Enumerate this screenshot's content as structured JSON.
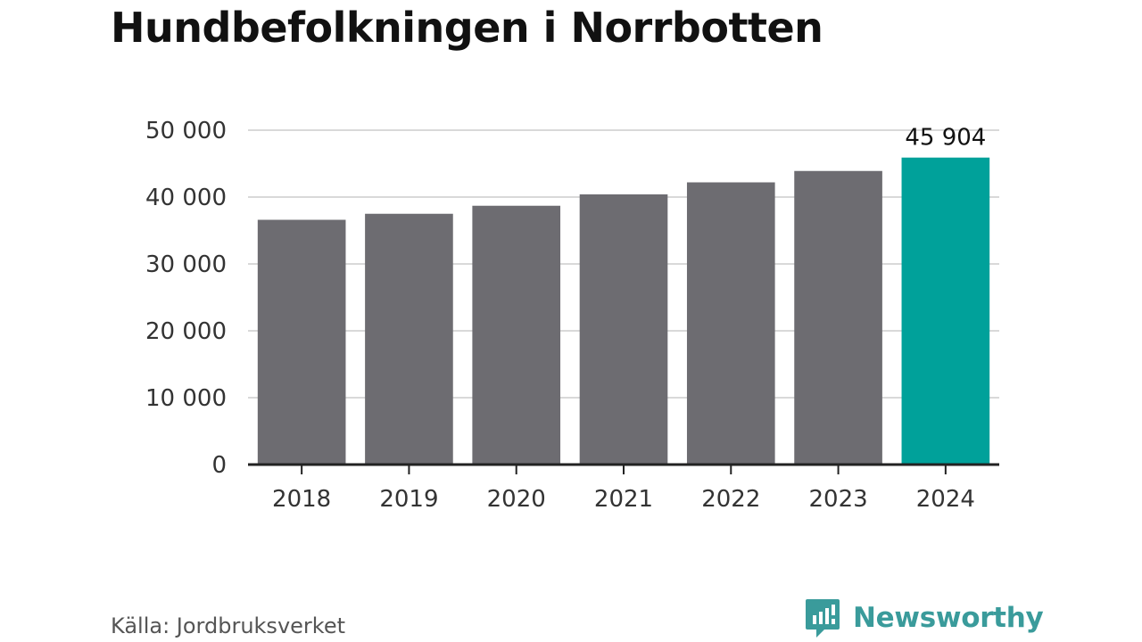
{
  "title": "Hundbefolkningen i Norrbotten",
  "source": "Källa: Jordbruksverket",
  "brand": {
    "name": "Newsworthy",
    "icon": "bar-chart-speech-bubble-icon"
  },
  "colors": {
    "bar": "#6d6c71",
    "highlight": "#00a19a",
    "grid": "#d9d9d9",
    "axis": "#222222",
    "text": "#333333",
    "brand": "#3a9b9b"
  },
  "chart_data": {
    "type": "bar",
    "title": "Hundbefolkningen i Norrbotten",
    "categories": [
      "2018",
      "2019",
      "2020",
      "2021",
      "2022",
      "2023",
      "2024"
    ],
    "values": [
      36600,
      37500,
      38700,
      40400,
      42200,
      43900,
      45904
    ],
    "highlight_index": 6,
    "data_labels": [
      {
        "index": 6,
        "text": "45 904"
      }
    ],
    "y_ticks": [
      0,
      10000,
      20000,
      30000,
      40000,
      50000
    ],
    "y_tick_labels": [
      "0",
      "10 000",
      "20 000",
      "30 000",
      "40 000",
      "50 000"
    ],
    "ylim": [
      0,
      50000
    ],
    "xlabel": "",
    "ylabel": "",
    "grid": true,
    "legend": "none"
  }
}
